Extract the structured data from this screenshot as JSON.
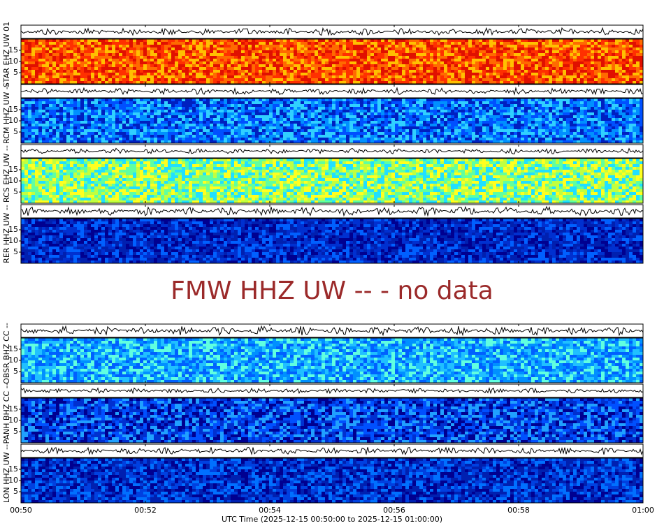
{
  "chart_data": {
    "type": "spectrogram",
    "panels": [
      {
        "label": "STAR EHZ UW 01",
        "colors": [
          "#ff6a00",
          "#ff3000",
          "#ffc000",
          "#e01000"
        ]
      },
      {
        "label": "RCM HHZ UW --",
        "colors": [
          "#0050ff",
          "#0090ff",
          "#0020c0",
          "#30d0ff"
        ]
      },
      {
        "label": "RCS EHZ UW --",
        "colors": [
          "#c0ff40",
          "#60ffa0",
          "#ffff20",
          "#20e0ff"
        ]
      },
      {
        "label": "RER HHZ UW --",
        "colors": [
          "#0020b0",
          "#0030d0",
          "#000090",
          "#0060ff"
        ]
      },
      {
        "label": "OBSR BHZ CC --",
        "colors": [
          "#0090ff",
          "#20c0ff",
          "#0060ff",
          "#60ffe0"
        ]
      },
      {
        "label": "PANH BHZ CC --",
        "colors": [
          "#0030d0",
          "#0050ff",
          "#000090",
          "#20a0ff"
        ]
      },
      {
        "label": "LON HHZ UW --",
        "colors": [
          "#0040e0",
          "#0020b0",
          "#0070ff",
          "#000090"
        ]
      }
    ],
    "no_data_text": "FMW HHZ UW -- - no data",
    "ylim": [
      0,
      20
    ],
    "yticks": [
      5,
      10,
      15
    ],
    "xlim": [
      50,
      60
    ],
    "xticks": [
      {
        "value": 50,
        "label": "00:50"
      },
      {
        "value": 52,
        "label": "00:52"
      },
      {
        "value": 54,
        "label": "00:54"
      },
      {
        "value": 56,
        "label": "00:56"
      },
      {
        "value": 58,
        "label": "00:58"
      },
      {
        "value": 60,
        "label": "01:00"
      }
    ],
    "xlabel": "UTC Time (2025-12-15 00:50:00 to 2025-12-15 01:00:00)"
  }
}
